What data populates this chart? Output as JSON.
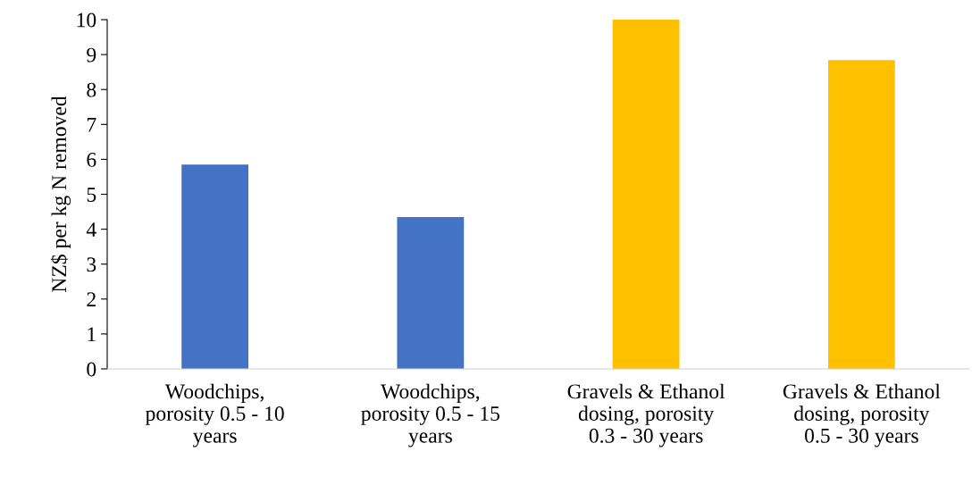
{
  "chart_data": {
    "type": "bar",
    "categories": [
      "Woodchips,\nporosity 0.5 - 10\nyears",
      "Woodchips,\nporosity 0.5 - 15\nyears",
      "Gravels & Ethanol\ndosing, porosity\n0.3 - 30 years",
      "Gravels & Ethanol\ndosing, porosity\n0.5 - 30 years"
    ],
    "values": [
      5.85,
      4.35,
      10.0,
      8.84
    ],
    "colors": [
      "#4472c4",
      "#4472c4",
      "#ffc000",
      "#ffc000"
    ],
    "ylabel": "NZ$ per kg N removed",
    "ylim": [
      0,
      10
    ],
    "yticks": [
      0,
      1,
      2,
      3,
      4,
      5,
      6,
      7,
      8,
      9,
      10
    ],
    "grid": false,
    "legend": false
  }
}
